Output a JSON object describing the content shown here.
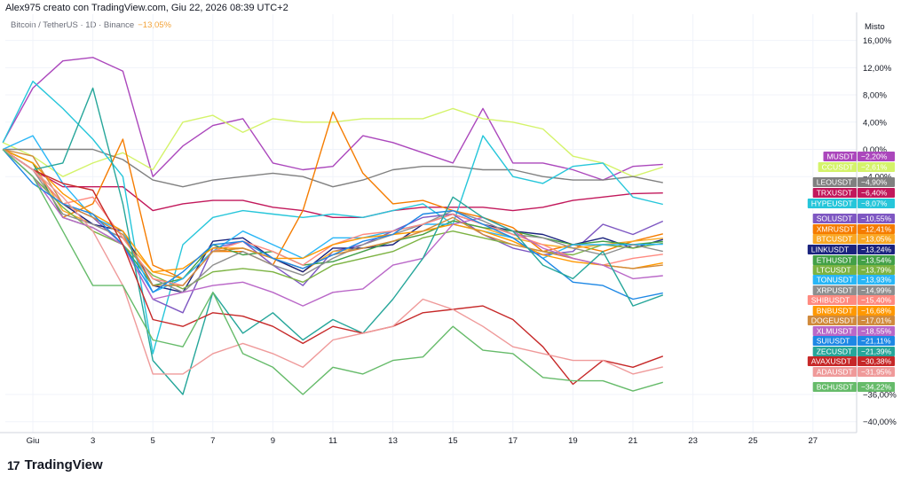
{
  "header": {
    "author_line": "Alex975 creato con TradingView.com, Giu 22, 2026 08:39 UTC+2"
  },
  "symbol": {
    "name": "Bitcoin / TetherUS · 1D · Binance",
    "change": "−13,05%"
  },
  "brand": {
    "mark": "17",
    "name": "TradingView"
  },
  "chart_data": {
    "type": "line",
    "title": "",
    "scale_label": "Misto",
    "x_ticks": [
      {
        "x": 1,
        "label": "Giu"
      },
      {
        "x": 3,
        "label": "3"
      },
      {
        "x": 5,
        "label": "5"
      },
      {
        "x": 7,
        "label": "7"
      },
      {
        "x": 9,
        "label": "9"
      },
      {
        "x": 11,
        "label": "11"
      },
      {
        "x": 13,
        "label": "13"
      },
      {
        "x": 15,
        "label": "15"
      },
      {
        "x": 17,
        "label": "17"
      },
      {
        "x": 19,
        "label": "19"
      },
      {
        "x": 21,
        "label": "21"
      },
      {
        "x": 23,
        "label": "23"
      },
      {
        "x": 25,
        "label": "25"
      },
      {
        "x": 27,
        "label": "27"
      }
    ],
    "y_ticks": [
      {
        "y": 16,
        "label": "16,00%"
      },
      {
        "y": 12,
        "label": "12,00%"
      },
      {
        "y": 8,
        "label": "8,00%"
      },
      {
        "y": 4,
        "label": "4,00%"
      },
      {
        "y": 0,
        "label": "0,00%"
      },
      {
        "y": -4,
        "label": "−4,00%"
      },
      {
        "y": -36,
        "label": "−36,00%"
      },
      {
        "y": -40,
        "label": "−40,00%"
      }
    ],
    "xlim": [
      0,
      28.5
    ],
    "ylim": [
      -42,
      20
    ],
    "x": [
      0,
      1,
      2,
      3,
      4,
      5,
      6,
      7,
      8,
      9,
      10,
      11,
      12,
      13,
      14,
      15,
      16,
      17,
      18,
      19,
      20,
      21,
      22
    ],
    "series": [
      {
        "name": "MUSDT",
        "label": "−2,20%",
        "color": "#ab47bc",
        "values": [
          1,
          9,
          13,
          13.5,
          11.5,
          -4,
          0.5,
          3.5,
          4.5,
          -2,
          -3,
          -2.5,
          2,
          1,
          -0.5,
          -2,
          6,
          -2,
          -2,
          -3,
          -4.5,
          -2.5,
          -2.2
        ]
      },
      {
        "name": "CCUSDT",
        "label": "−2,61%",
        "color": "#d4f36a",
        "values": [
          1,
          -1,
          -4,
          -2,
          -0.5,
          -3,
          4,
          5,
          2.5,
          4.5,
          4,
          4,
          4.5,
          4.5,
          4.5,
          6,
          4.5,
          4,
          3,
          -1,
          -2,
          -4,
          -2.61
        ]
      },
      {
        "name": "LEOUSDT",
        "label": "−4,90%",
        "color": "#808080",
        "values": [
          0,
          0,
          0,
          0,
          -1.5,
          -4.5,
          -5.5,
          -4.5,
          -4,
          -3.5,
          -4,
          -5.5,
          -4.5,
          -3,
          -2.5,
          -2.5,
          -3,
          -3,
          -4,
          -4.5,
          -4.5,
          -4,
          -4.9
        ]
      },
      {
        "name": "TRXUSDT",
        "label": "−6,40%",
        "color": "#c2185b",
        "values": [
          0,
          -3,
          -5.5,
          -5.5,
          -5.5,
          -9,
          -8,
          -7.5,
          -7.5,
          -8.5,
          -9,
          -10,
          -10,
          -9,
          -8.5,
          -8.5,
          -8.5,
          -9,
          -8.5,
          -7.5,
          -7,
          -6.5,
          -6.4
        ]
      },
      {
        "name": "HYPEUSDT",
        "label": "−8,07%",
        "color": "#26c6da",
        "values": [
          1,
          10,
          6,
          1.5,
          -4,
          -30,
          -14,
          -10,
          -9,
          -9.5,
          -10,
          -9.5,
          -10,
          -9,
          -8,
          -11,
          2,
          -4,
          -5,
          -2.5,
          -2,
          -7,
          -8.07
        ]
      },
      {
        "name": "SOLUSDT",
        "label": "−10,55%",
        "color": "#7e57c2",
        "values": [
          0,
          -3,
          -8,
          -10,
          -14,
          -22,
          -24,
          -14.5,
          -13.5,
          -17,
          -20,
          -15,
          -14,
          -12,
          -10,
          -9.5,
          -12.5,
          -14.5,
          -15.5,
          -15,
          -11,
          -12.5,
          -10.55
        ]
      },
      {
        "name": "XMRUSDT",
        "label": "−12,41%",
        "color": "#f57c00",
        "values": [
          0,
          -2,
          -10,
          -8,
          1.5,
          -17,
          -19,
          -15,
          -15,
          -17,
          -9,
          5.5,
          -3.5,
          -8,
          -7.5,
          -9,
          -10,
          -11.5,
          -15,
          -14,
          -15,
          -13.5,
          -12.41
        ]
      },
      {
        "name": "BTCUSDT",
        "label": "−13,05%",
        "color": "#f9a825",
        "values": [
          0,
          -2,
          -9,
          -11,
          -13,
          -18,
          -19,
          -15,
          -14.5,
          -16,
          -18,
          -15,
          -14.5,
          -13.5,
          -12.5,
          -10.5,
          -11.5,
          -13,
          -14,
          -14.5,
          -14,
          -13.5,
          -13.05
        ]
      },
      {
        "name": "LINKUSDT",
        "label": "−13,24%",
        "color": "#1a237e",
        "values": [
          0,
          -3,
          -8,
          -11,
          -12,
          -20,
          -21,
          -13.5,
          -13,
          -16,
          -18,
          -14.5,
          -14.5,
          -14,
          -11,
          -9.5,
          -11,
          -12,
          -12.5,
          -14,
          -13,
          -14.5,
          -13.24
        ]
      },
      {
        "name": "ETHUSDT",
        "label": "−13,54%",
        "color": "#43a047",
        "values": [
          0,
          -2,
          -10,
          -11.5,
          -14,
          -20,
          -19,
          -14,
          -15.5,
          -15,
          -17,
          -16.5,
          -15,
          -13.5,
          -12.5,
          -10.5,
          -11.5,
          -12,
          -13,
          -14,
          -13.5,
          -14,
          -13.54
        ]
      },
      {
        "name": "LTCUSDT",
        "label": "−13,79%",
        "color": "#7cb342",
        "values": [
          0,
          -4,
          -8.5,
          -12,
          -14,
          -18.5,
          -20.5,
          -18,
          -17.5,
          -18,
          -19.5,
          -17,
          -16,
          -15,
          -13,
          -12,
          -13,
          -14,
          -15,
          -15.5,
          -14,
          -14.5,
          -13.79
        ]
      },
      {
        "name": "TONUSDT",
        "label": "−13,93%",
        "color": "#29b6f6",
        "values": [
          0,
          2,
          -5,
          -10,
          -12,
          -21,
          -19,
          -15,
          -12,
          -14,
          -16,
          -13,
          -13,
          -12,
          -11,
          -11,
          -12,
          -13,
          -16,
          -14,
          -14,
          -14,
          -13.93
        ]
      },
      {
        "name": "XRPUSDT",
        "label": "−14,99%",
        "color": "#8e8e8e",
        "values": [
          0,
          -3,
          -9.5,
          -11,
          -13,
          -19,
          -21,
          -17,
          -15,
          -17,
          -18.5,
          -16,
          -14,
          -12.5,
          -11,
          -9,
          -10.5,
          -12.5,
          -13,
          -14.5,
          -15.5,
          -14,
          -14.99
        ]
      },
      {
        "name": "SHIBUSDT",
        "label": "−15,40%",
        "color": "#ff8a80",
        "values": [
          0,
          -3,
          -8,
          -7,
          -13,
          -19,
          -20,
          -15,
          -13.5,
          -15,
          -17,
          -14,
          -12.5,
          -12,
          -11,
          -9.5,
          -11,
          -12.5,
          -14,
          -16,
          -17,
          -16,
          -15.4
        ]
      },
      {
        "name": "BNBUSDT",
        "label": "−16,68%",
        "color": "#ff9800",
        "values": [
          0,
          -2,
          -6.5,
          -9.5,
          -12,
          -18,
          -17.5,
          -14.5,
          -14.5,
          -16,
          -16,
          -14,
          -13,
          -12.5,
          -12,
          -11,
          -12,
          -13.5,
          -15.5,
          -16.5,
          -17,
          -17.5,
          -16.68
        ]
      },
      {
        "name": "DOGEUSDT",
        "label": "−17,01%",
        "color": "#d08a3c",
        "values": [
          0,
          -1,
          -8,
          -10,
          -12.5,
          -20,
          -20,
          -15,
          -14.5,
          -16,
          -17.5,
          -15.5,
          -14.5,
          -13.5,
          -12,
          -10,
          -12.5,
          -14,
          -15,
          -16,
          -17,
          -17.5,
          -17.01
        ]
      },
      {
        "name": "XLMUSDT",
        "label": "−18,55%",
        "color": "#ba68c8",
        "values": [
          0,
          -4,
          -10,
          -11.5,
          -14,
          -22,
          -21,
          -20,
          -19.5,
          -21,
          -23,
          -21,
          -20.5,
          -17,
          -16,
          -11,
          -10,
          -12,
          -14.5,
          -16,
          -17,
          -19,
          -18.55
        ]
      },
      {
        "name": "SUIUSDT",
        "label": "−21,11%",
        "color": "#1e88e5",
        "values": [
          0,
          -5,
          -8,
          -9.5,
          -14,
          -21,
          -18,
          -14,
          -13.5,
          -16,
          -17.5,
          -15.5,
          -13.5,
          -12.5,
          -9.5,
          -9,
          -11,
          -13,
          -16,
          -19.5,
          -20,
          -22,
          -21.11
        ]
      },
      {
        "name": "ZECUSDT",
        "label": "−21,39%",
        "color": "#26a69a",
        "values": [
          0,
          -3,
          -2,
          9,
          -8,
          -31,
          -36,
          -21,
          -27,
          -24,
          -28,
          -25,
          -27,
          -22,
          -16,
          -7,
          -10,
          -12,
          -17,
          -19,
          -15,
          -23,
          -21.39
        ]
      },
      {
        "name": "AVAXUSDT",
        "label": "−30,38%",
        "color": "#c62828",
        "values": [
          0,
          -3,
          -5,
          -6,
          -14,
          -25,
          -26,
          -24,
          -24.5,
          -26,
          -28.5,
          -26,
          -27,
          -26,
          -24,
          -23.5,
          -23,
          -25,
          -29,
          -34.5,
          -31,
          -32,
          -30.38
        ]
      },
      {
        "name": "ADAUSDT",
        "label": "−31,95%",
        "color": "#ef9a9a",
        "values": [
          0,
          -3,
          -7,
          -12,
          -20,
          -33,
          -33,
          -30,
          -28.5,
          -30,
          -32,
          -28,
          -27,
          -26,
          -22,
          -23.5,
          -26,
          -29,
          -30,
          -31,
          -31,
          -33,
          -31.95
        ]
      },
      {
        "name": "BCHUSDT",
        "label": "−34,22%",
        "color": "#66bb6a",
        "values": [
          0,
          -4,
          -12,
          -20,
          -20,
          -28,
          -29,
          -21,
          -30,
          -32,
          -36,
          -32,
          -33,
          -31,
          -30.5,
          -26,
          -29.5,
          -30,
          -33.5,
          -34,
          -34,
          -35.5,
          -34.22
        ]
      }
    ]
  }
}
